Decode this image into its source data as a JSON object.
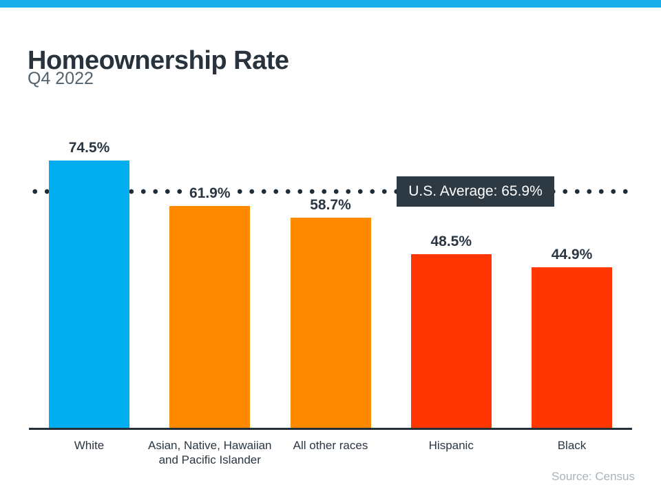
{
  "page": {
    "title": "Homeownership Rate",
    "subtitle": "Q4 2022",
    "source": "Source: Census"
  },
  "colors": {
    "accent_strip": "#18ACE9",
    "bar_blue": "#00AEEF",
    "bar_orange": "#FF8A00",
    "bar_red": "#FF3600",
    "text_dark": "#2A3642",
    "reference_box_bg": "#2D3A44",
    "dot_line": "#1F2D39",
    "source_gray": "#A9B3BB"
  },
  "chart_data": {
    "type": "bar",
    "title": "Homeownership Rate",
    "subtitle": "Q4 2022",
    "categories": [
      "White",
      "Asian, Native, Hawaiian and Pacific Islander",
      "All other races",
      "Hispanic",
      "Black"
    ],
    "categories_display": [
      "White",
      "Asian, Native, Hawaiian\nand Pacific Islander",
      "All other races",
      "Hispanic",
      "Black"
    ],
    "values": [
      74.5,
      61.9,
      58.7,
      48.5,
      44.9
    ],
    "value_labels": [
      "74.5%",
      "61.9%",
      "58.7%",
      "48.5%",
      "44.9%"
    ],
    "bar_colors": [
      "#00AEEF",
      "#FF8A00",
      "#FF8A00",
      "#FF3600",
      "#FF3600"
    ],
    "reference_line": {
      "label": "U.S. Average: 65.9%",
      "value": 65.9,
      "style": "dotted"
    },
    "xlabel": "",
    "ylabel": "",
    "ylim": [
      0,
      100
    ],
    "grid": false,
    "legend": false,
    "source": "Source: Census"
  }
}
